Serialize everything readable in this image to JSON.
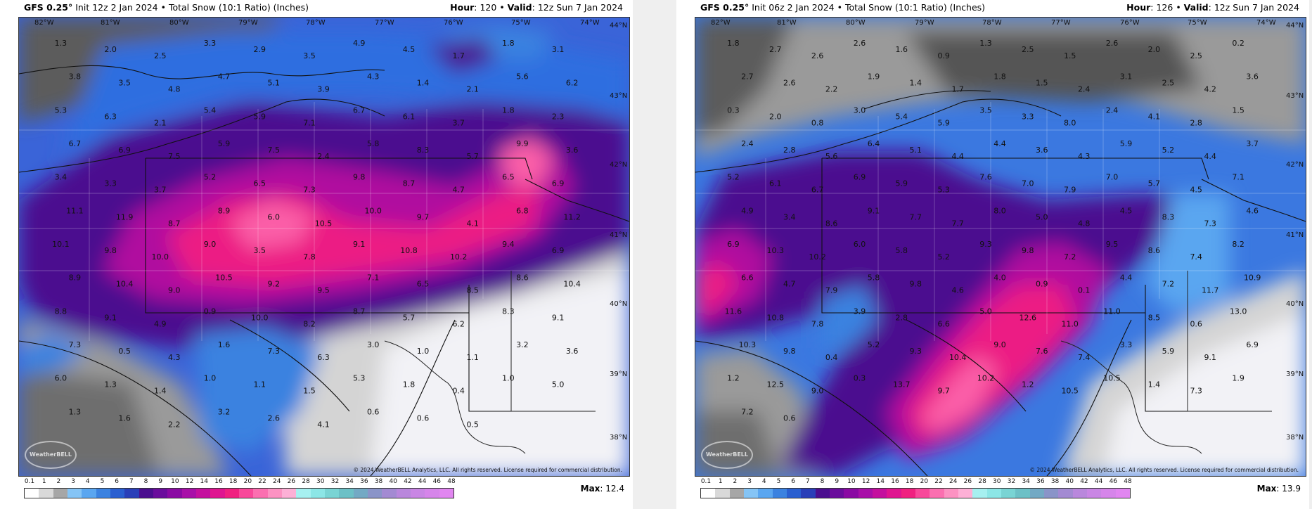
{
  "panels": [
    {
      "model": "GFS 0.25°",
      "init": "Init 12z 2 Jan 2024",
      "product": "Total Snow (10:1 Ratio) (Inches)",
      "hour_label": "Hour",
      "hour": "120",
      "valid_label": "Valid",
      "valid": "12z Sun 7 Jan 2024",
      "max_label": "Max",
      "max": "12.4",
      "copyright": "© 2024 WeatherBELL Analytics, LLC. All rights reserved. License required for commercial distribution.",
      "logo_text": "WeatherBELL",
      "lon_labels": [
        "82°W",
        "81°W",
        "80°W",
        "79°W",
        "78°W",
        "77°W",
        "76°W",
        "75°W",
        "74°W"
      ],
      "lat_labels": [
        "44°N",
        "43°N",
        "42°N",
        "41°N",
        "40°N",
        "39°N",
        "38°N"
      ],
      "values": [
        "1.3",
        "2.0",
        "2.5",
        "3.3",
        "2.9",
        "3.5",
        "4.9",
        "4.5",
        "1.7",
        "1.8",
        "3.1",
        "3.8",
        "3.5",
        "4.8",
        "4.7",
        "5.1",
        "3.9",
        "4.3",
        "1.4",
        "2.1",
        "5.6",
        "6.2",
        "5.3",
        "6.3",
        "2.1",
        "5.4",
        "5.9",
        "7.1",
        "6.7",
        "6.1",
        "3.7",
        "1.8",
        "2.3",
        "6.7",
        "6.9",
        "7.5",
        "5.9",
        "7.5",
        "2.4",
        "5.8",
        "8.3",
        "5.7",
        "9.9",
        "3.6",
        "3.4",
        "3.3",
        "3.7",
        "5.2",
        "6.5",
        "7.3",
        "9.8",
        "8.7",
        "4.7",
        "6.5",
        "6.9",
        "11.1",
        "11.9",
        "8.7",
        "8.9",
        "6.0",
        "10.5",
        "10.0",
        "9.7",
        "4.1",
        "6.8",
        "11.2",
        "10.1",
        "9.8",
        "10.0",
        "9.0",
        "3.5",
        "7.8",
        "9.1",
        "10.8",
        "10.2",
        "9.4",
        "6.9",
        "8.9",
        "10.4",
        "9.0",
        "10.5",
        "9.2",
        "9.5",
        "7.1",
        "6.5",
        "8.5",
        "8.6",
        "10.4",
        "8.8",
        "9.1",
        "4.9",
        "0.9",
        "10.0",
        "8.2",
        "8.7",
        "5.7",
        "6.2",
        "8.3",
        "9.1",
        "7.3",
        "0.5",
        "4.3",
        "1.6",
        "7.3",
        "6.3",
        "3.0",
        "1.0",
        "1.1",
        "3.2",
        "3.6",
        "6.0",
        "1.3",
        "1.4",
        "1.0",
        "1.1",
        "1.5",
        "5.3",
        "1.8",
        "0.4",
        "1.0",
        "5.0",
        "1.3",
        "1.6",
        "2.2",
        "3.2",
        "2.6",
        "4.1",
        "0.6",
        "0.6",
        "0.5"
      ],
      "max_value": 12.4
    },
    {
      "model": "GFS 0.25°",
      "init": "Init 06z 2 Jan 2024",
      "product": "Total Snow (10:1 Ratio) (Inches)",
      "hour_label": "Hour",
      "hour": "126",
      "valid_label": "Valid",
      "valid": "12z Sun 7 Jan 2024",
      "max_label": "Max",
      "max": "13.9",
      "copyright": "© 2024 WeatherBELL Analytics, LLC. All rights reserved. License required for commercial distribution.",
      "logo_text": "WeatherBELL",
      "lon_labels": [
        "82°W",
        "81°W",
        "80°W",
        "79°W",
        "78°W",
        "77°W",
        "76°W",
        "75°W",
        "74°W"
      ],
      "lat_labels": [
        "44°N",
        "43°N",
        "42°N",
        "41°N",
        "40°N",
        "39°N",
        "38°N"
      ],
      "values": [
        "1.8",
        "2.7",
        "2.6",
        "2.6",
        "1.6",
        "0.9",
        "1.3",
        "2.5",
        "1.5",
        "2.6",
        "2.0",
        "2.5",
        "0.2",
        "2.7",
        "2.6",
        "2.2",
        "1.9",
        "1.4",
        "1.7",
        "1.8",
        "1.5",
        "2.4",
        "3.1",
        "2.5",
        "4.2",
        "3.6",
        "0.3",
        "2.0",
        "0.8",
        "3.0",
        "5.4",
        "5.9",
        "3.5",
        "3.3",
        "8.0",
        "2.4",
        "4.1",
        "2.8",
        "1.5",
        "2.4",
        "2.8",
        "5.6",
        "6.4",
        "5.1",
        "4.4",
        "4.4",
        "3.6",
        "4.3",
        "5.9",
        "5.2",
        "4.4",
        "3.7",
        "5.2",
        "6.1",
        "6.7",
        "6.9",
        "5.9",
        "5.3",
        "7.6",
        "7.0",
        "7.9",
        "7.0",
        "5.7",
        "4.5",
        "7.1",
        "4.9",
        "3.4",
        "8.6",
        "9.1",
        "7.7",
        "7.7",
        "8.0",
        "5.0",
        "4.8",
        "4.5",
        "8.3",
        "7.3",
        "4.6",
        "6.9",
        "10.3",
        "10.2",
        "6.0",
        "5.8",
        "5.2",
        "9.3",
        "9.8",
        "7.2",
        "9.5",
        "8.6",
        "7.4",
        "8.2",
        "6.6",
        "4.7",
        "7.9",
        "5.8",
        "9.8",
        "4.6",
        "4.0",
        "0.9",
        "0.1",
        "4.4",
        "7.2",
        "11.7",
        "10.9",
        "11.6",
        "10.8",
        "7.8",
        "3.9",
        "2.8",
        "6.6",
        "5.0",
        "12.6",
        "11.0",
        "11.0",
        "8.5",
        "0.6",
        "13.0",
        "10.3",
        "9.8",
        "0.4",
        "5.2",
        "9.3",
        "10.4",
        "9.0",
        "7.6",
        "7.4",
        "3.3",
        "5.9",
        "9.1",
        "6.9",
        "1.2",
        "12.5",
        "9.0",
        "0.3",
        "13.7",
        "9.7",
        "10.2",
        "1.2",
        "10.5",
        "10.5",
        "1.4",
        "7.3",
        "1.9",
        "7.2",
        "0.6"
      ],
      "max_value": 13.9
    }
  ],
  "legend": {
    "ticks": [
      "0.1",
      "1",
      "2",
      "3",
      "4",
      "5",
      "6",
      "7",
      "8",
      "9",
      "10",
      "12",
      "14",
      "16",
      "18",
      "20",
      "22",
      "24",
      "26",
      "28",
      "30",
      "32",
      "34",
      "36",
      "38",
      "40",
      "42",
      "44",
      "46",
      "48"
    ],
    "colors": [
      "#ffffff",
      "#d9d9d9",
      "#a6a6a6",
      "#85c4f5",
      "#5aa6f0",
      "#3b82e0",
      "#2a5fd0",
      "#2a3fb8",
      "#4b0f8f",
      "#6a0d9c",
      "#8a0aa3",
      "#a80fa8",
      "#c4109e",
      "#df1590",
      "#f02080",
      "#f8489a",
      "#fb6fb0",
      "#fc92c2",
      "#fdb0d6",
      "#a6f0f0",
      "#8ce6e6",
      "#79d4d4",
      "#6cc0c6",
      "#73a9c4",
      "#8a94c8",
      "#a38ad2",
      "#b987dc",
      "#c986e4",
      "#d685ea",
      "#e186f0"
    ]
  }
}
